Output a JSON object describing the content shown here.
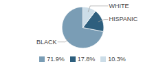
{
  "chart_data": {
    "type": "pie",
    "categories": [
      "BLACK",
      "HISPANIC",
      "WHITE"
    ],
    "values": [
      71.9,
      17.8,
      10.3
    ],
    "colors": [
      "#7a9db5",
      "#2e5f7e",
      "#ccdde8"
    ],
    "value_labels": [
      "71.9%",
      "17.8%",
      "10.3%"
    ],
    "legend": "bottom"
  }
}
